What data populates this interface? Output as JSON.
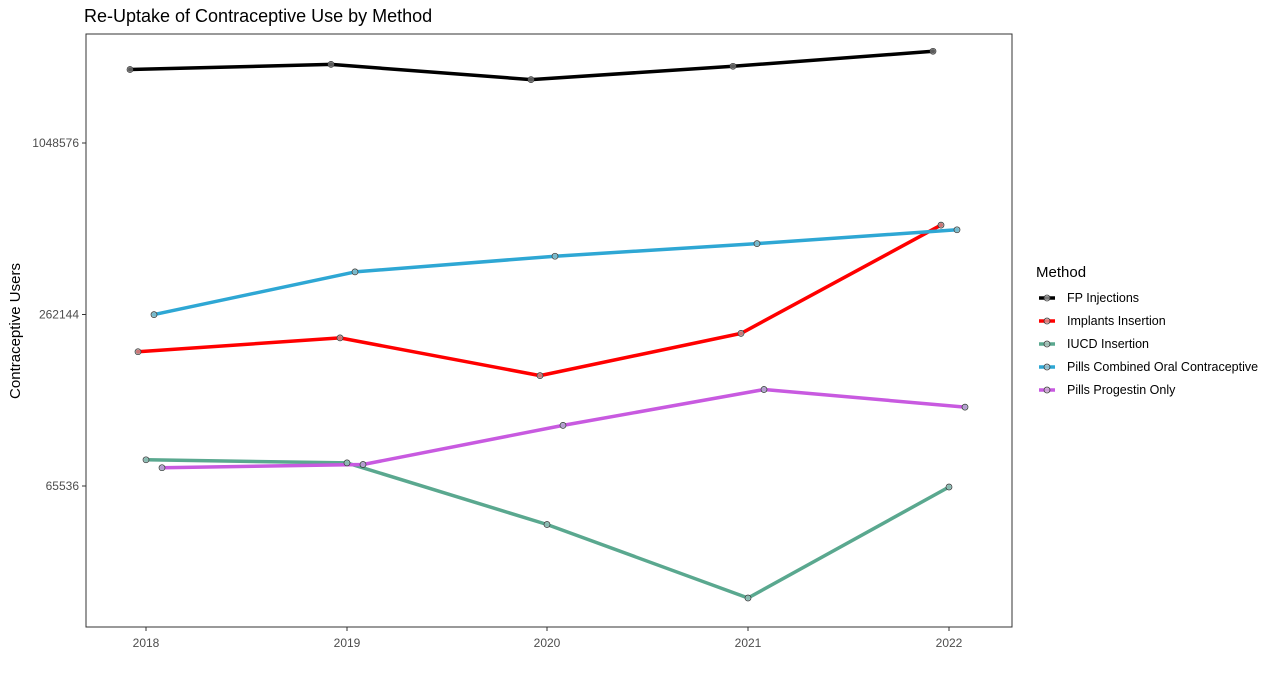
{
  "chart_data": {
    "type": "line",
    "title": "Re-Uptake of Contraceptive Use by Method",
    "xlabel": "",
    "ylabel": "Contraceptive Users",
    "y_scale": "log2",
    "x": [
      2018,
      2019,
      2020,
      2021,
      2022
    ],
    "x_ticks": [
      "2018",
      "2019",
      "2020",
      "2021",
      "2022"
    ],
    "y_ticks": [
      65536,
      262144,
      1048576
    ],
    "y_tick_labels": [
      "65536",
      "262144",
      "1048576"
    ],
    "grid": false,
    "legend_title": "Method",
    "legend_position": "right",
    "series": [
      {
        "name": "FP Injections",
        "color": "#000000",
        "values": [
          1900000,
          1980000,
          1750000,
          1950000,
          2200000
        ]
      },
      {
        "name": "Implants Insertion",
        "color": "#ff0000",
        "values": [
          194000,
          217000,
          160000,
          225000,
          540000
        ]
      },
      {
        "name": "IUCD Insertion",
        "color": "#5aa88f",
        "values": [
          81000,
          79000,
          48000,
          26500,
          65000
        ]
      },
      {
        "name": "Pills Combined Oral Contraceptive",
        "color": "#2ea7d4",
        "values": [
          262000,
          370000,
          420000,
          465000,
          520000
        ]
      },
      {
        "name": "Pills Progestin Only",
        "color": "#c85ae0",
        "values": [
          76000,
          78000,
          107000,
          143000,
          124000
        ]
      }
    ]
  }
}
